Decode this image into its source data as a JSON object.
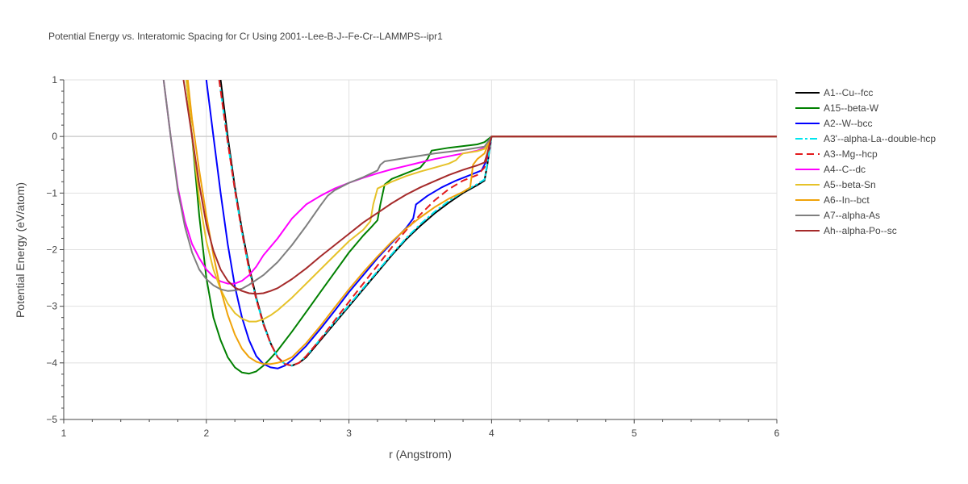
{
  "chart_data": {
    "type": "line",
    "title": "Potential Energy vs. Interatomic Spacing for Cr Using 2001--Lee-B-J--Fe-Cr--LAMMPS--ipr1",
    "xlabel": "r (Angstrom)",
    "ylabel": "Potential Energy (eV/atom)",
    "xlim": [
      1,
      6
    ],
    "ylim": [
      -5,
      1
    ],
    "xticks": [
      1,
      2,
      3,
      4,
      5,
      6
    ],
    "yticks": [
      -5,
      -4,
      -3,
      -2,
      -1,
      0,
      1
    ],
    "xtick_labels": [
      "1",
      "2",
      "3",
      "4",
      "5",
      "6"
    ],
    "ytick_labels": [
      "−5",
      "−4",
      "−3",
      "−2",
      "−1",
      "0",
      "1"
    ],
    "grid": true,
    "legend_position": "top-right-outside",
    "series": [
      {
        "name": "A1--Cu--fcc",
        "color": "#000000",
        "dash": "solid",
        "x": [
          2.1,
          2.15,
          2.2,
          2.25,
          2.3,
          2.35,
          2.4,
          2.45,
          2.5,
          2.55,
          2.6,
          2.65,
          2.7,
          2.8,
          2.9,
          3.0,
          3.1,
          3.2,
          3.3,
          3.4,
          3.5,
          3.6,
          3.7,
          3.8,
          3.9,
          3.95,
          3.97,
          4.0,
          6.0
        ],
        "y": [
          1.0,
          0.0,
          -0.9,
          -1.65,
          -2.3,
          -2.85,
          -3.3,
          -3.65,
          -3.9,
          -4.02,
          -4.05,
          -4.0,
          -3.9,
          -3.6,
          -3.3,
          -3.0,
          -2.7,
          -2.4,
          -2.1,
          -1.82,
          -1.58,
          -1.36,
          -1.17,
          -1.0,
          -0.86,
          -0.78,
          -0.5,
          0.0,
          0.0
        ]
      },
      {
        "name": "A15--beta-W",
        "color": "#008000",
        "dash": "solid",
        "x": [
          1.86,
          1.9,
          1.95,
          2.0,
          2.05,
          2.1,
          2.15,
          2.2,
          2.25,
          2.3,
          2.35,
          2.4,
          2.45,
          2.5,
          2.6,
          2.7,
          2.8,
          2.9,
          3.0,
          3.1,
          3.15,
          3.2,
          3.22,
          3.25,
          3.3,
          3.4,
          3.5,
          3.55,
          3.58,
          3.7,
          3.8,
          3.9,
          3.95,
          4.0,
          6.0
        ],
        "y": [
          1.0,
          0.0,
          -1.4,
          -2.5,
          -3.2,
          -3.6,
          -3.9,
          -4.08,
          -4.17,
          -4.19,
          -4.15,
          -4.05,
          -3.92,
          -3.78,
          -3.45,
          -3.1,
          -2.75,
          -2.4,
          -2.05,
          -1.75,
          -1.62,
          -1.48,
          -1.2,
          -0.85,
          -0.75,
          -0.65,
          -0.55,
          -0.4,
          -0.25,
          -0.2,
          -0.17,
          -0.14,
          -0.1,
          0.0,
          0.0
        ]
      },
      {
        "name": "A2--W--bcc",
        "color": "#0000ff",
        "dash": "solid",
        "x": [
          2.0,
          2.05,
          2.1,
          2.15,
          2.2,
          2.25,
          2.3,
          2.35,
          2.4,
          2.45,
          2.5,
          2.55,
          2.6,
          2.7,
          2.8,
          2.9,
          3.0,
          3.1,
          3.2,
          3.3,
          3.4,
          3.45,
          3.47,
          3.55,
          3.65,
          3.75,
          3.85,
          3.93,
          3.97,
          4.0,
          6.0
        ],
        "y": [
          1.0,
          0.0,
          -1.0,
          -1.9,
          -2.65,
          -3.2,
          -3.6,
          -3.88,
          -4.02,
          -4.08,
          -4.1,
          -4.05,
          -3.95,
          -3.7,
          -3.4,
          -3.08,
          -2.75,
          -2.45,
          -2.15,
          -1.88,
          -1.62,
          -1.45,
          -1.2,
          -1.05,
          -0.9,
          -0.78,
          -0.68,
          -0.6,
          -0.4,
          0.0,
          0.0
        ]
      },
      {
        "name": "A3'--alpha-La--double-hcp",
        "color": "#00e5ee",
        "dash": "dashdot",
        "x": [
          2.09,
          2.15,
          2.2,
          2.25,
          2.3,
          2.35,
          2.4,
          2.45,
          2.5,
          2.55,
          2.6,
          2.65,
          2.7,
          2.8,
          2.9,
          3.0,
          3.1,
          3.2,
          3.3,
          3.4,
          3.5,
          3.6,
          3.7,
          3.8,
          3.9,
          3.95,
          3.97,
          4.0,
          6.0
        ],
        "y": [
          1.0,
          -0.1,
          -0.95,
          -1.7,
          -2.35,
          -2.88,
          -3.32,
          -3.66,
          -3.9,
          -4.02,
          -4.05,
          -4.0,
          -3.88,
          -3.58,
          -3.28,
          -2.98,
          -2.68,
          -2.38,
          -2.08,
          -1.8,
          -1.55,
          -1.33,
          -1.14,
          -0.98,
          -0.84,
          -0.76,
          -0.48,
          0.0,
          0.0
        ]
      },
      {
        "name": "A3--Mg--hcp",
        "color": "#e31a1c",
        "dash": "dash",
        "x": [
          2.09,
          2.15,
          2.2,
          2.25,
          2.3,
          2.35,
          2.4,
          2.45,
          2.5,
          2.55,
          2.6,
          2.65,
          2.7,
          2.8,
          2.9,
          3.0,
          3.1,
          3.2,
          3.3,
          3.4,
          3.5,
          3.6,
          3.7,
          3.8,
          3.9,
          3.95,
          3.97,
          4.0,
          6.0
        ],
        "y": [
          1.0,
          -0.1,
          -0.95,
          -1.7,
          -2.35,
          -2.88,
          -3.32,
          -3.66,
          -3.9,
          -4.02,
          -4.05,
          -4.0,
          -3.88,
          -3.58,
          -3.25,
          -2.92,
          -2.6,
          -2.28,
          -1.96,
          -1.66,
          -1.38,
          -1.13,
          -0.93,
          -0.78,
          -0.68,
          -0.55,
          -0.35,
          0.0,
          0.0
        ]
      },
      {
        "name": "A4--C--dc",
        "color": "#ff00ff",
        "dash": "solid",
        "x": [
          1.7,
          1.75,
          1.8,
          1.85,
          1.9,
          1.95,
          2.0,
          2.05,
          2.1,
          2.15,
          2.2,
          2.25,
          2.3,
          2.35,
          2.4,
          2.5,
          2.6,
          2.7,
          2.8,
          2.9,
          3.0,
          3.1,
          3.2,
          3.3,
          3.4,
          3.5,
          3.6,
          3.7,
          3.8,
          3.9,
          3.97,
          4.0,
          6.0
        ],
        "y": [
          1.0,
          0.0,
          -0.9,
          -1.5,
          -1.9,
          -2.15,
          -2.35,
          -2.48,
          -2.56,
          -2.6,
          -2.6,
          -2.55,
          -2.45,
          -2.3,
          -2.1,
          -1.8,
          -1.45,
          -1.2,
          -1.05,
          -0.92,
          -0.82,
          -0.73,
          -0.65,
          -0.58,
          -0.52,
          -0.46,
          -0.4,
          -0.35,
          -0.3,
          -0.25,
          -0.18,
          0.0,
          0.0
        ]
      },
      {
        "name": "A5--beta-Sn",
        "color": "#e6c229",
        "dash": "solid",
        "x": [
          1.86,
          1.9,
          1.95,
          2.0,
          2.05,
          2.1,
          2.15,
          2.2,
          2.25,
          2.3,
          2.35,
          2.4,
          2.45,
          2.5,
          2.6,
          2.7,
          2.8,
          2.9,
          3.0,
          3.1,
          3.15,
          3.17,
          3.2,
          3.3,
          3.4,
          3.5,
          3.6,
          3.7,
          3.75,
          3.78,
          3.8,
          3.9,
          3.95,
          4.0,
          6.0
        ],
        "y": [
          1.0,
          0.0,
          -1.1,
          -1.85,
          -2.35,
          -2.7,
          -2.95,
          -3.12,
          -3.22,
          -3.27,
          -3.27,
          -3.23,
          -3.16,
          -3.07,
          -2.85,
          -2.6,
          -2.35,
          -2.1,
          -1.85,
          -1.65,
          -1.5,
          -1.2,
          -0.92,
          -0.8,
          -0.7,
          -0.62,
          -0.55,
          -0.48,
          -0.42,
          -0.34,
          -0.3,
          -0.26,
          -0.22,
          0.0,
          0.0
        ]
      },
      {
        "name": "A6--In--bct",
        "color": "#f0a30a",
        "dash": "solid",
        "x": [
          1.87,
          1.9,
          1.95,
          2.0,
          2.05,
          2.1,
          2.15,
          2.2,
          2.25,
          2.3,
          2.35,
          2.4,
          2.45,
          2.5,
          2.55,
          2.6,
          2.7,
          2.8,
          2.9,
          3.0,
          3.1,
          3.2,
          3.3,
          3.4,
          3.5,
          3.6,
          3.7,
          3.8,
          3.85,
          3.87,
          3.9,
          3.95,
          4.0,
          6.0
        ],
        "y": [
          1.0,
          0.3,
          -0.6,
          -1.4,
          -2.1,
          -2.7,
          -3.15,
          -3.5,
          -3.75,
          -3.9,
          -3.98,
          -4.02,
          -4.02,
          -4.0,
          -3.96,
          -3.9,
          -3.65,
          -3.35,
          -3.02,
          -2.7,
          -2.4,
          -2.12,
          -1.86,
          -1.63,
          -1.43,
          -1.25,
          -1.1,
          -0.98,
          -0.9,
          -0.5,
          -0.4,
          -0.3,
          0.0,
          0.0
        ]
      },
      {
        "name": "A7--alpha-As",
        "color": "#7f7f7f",
        "dash": "solid",
        "x": [
          1.7,
          1.75,
          1.8,
          1.85,
          1.9,
          1.95,
          2.0,
          2.05,
          2.1,
          2.15,
          2.2,
          2.25,
          2.3,
          2.4,
          2.5,
          2.6,
          2.7,
          2.8,
          2.85,
          2.9,
          3.0,
          3.1,
          3.2,
          3.22,
          3.25,
          3.4,
          3.6,
          3.8,
          3.95,
          4.0,
          6.0
        ],
        "y": [
          1.0,
          0.0,
          -0.95,
          -1.6,
          -2.05,
          -2.35,
          -2.52,
          -2.63,
          -2.7,
          -2.73,
          -2.72,
          -2.69,
          -2.62,
          -2.45,
          -2.22,
          -1.92,
          -1.58,
          -1.22,
          -1.05,
          -0.95,
          -0.82,
          -0.72,
          -0.6,
          -0.5,
          -0.44,
          -0.38,
          -0.3,
          -0.24,
          -0.18,
          0.0,
          0.0
        ]
      },
      {
        "name": "Ah--alpha-Po--sc",
        "color": "#a52a2a",
        "dash": "solid",
        "x": [
          1.84,
          1.9,
          1.95,
          2.0,
          2.05,
          2.1,
          2.15,
          2.2,
          2.25,
          2.3,
          2.35,
          2.4,
          2.45,
          2.5,
          2.6,
          2.7,
          2.8,
          2.9,
          3.0,
          3.1,
          3.2,
          3.3,
          3.4,
          3.5,
          3.6,
          3.7,
          3.8,
          3.9,
          3.95,
          3.97,
          4.0,
          6.0
        ],
        "y": [
          1.0,
          0.0,
          -0.85,
          -1.55,
          -2.02,
          -2.35,
          -2.55,
          -2.67,
          -2.73,
          -2.77,
          -2.78,
          -2.77,
          -2.73,
          -2.68,
          -2.52,
          -2.33,
          -2.12,
          -1.92,
          -1.72,
          -1.52,
          -1.35,
          -1.18,
          -1.03,
          -0.9,
          -0.79,
          -0.68,
          -0.59,
          -0.51,
          -0.46,
          -0.3,
          0.0,
          0.0
        ]
      }
    ]
  }
}
